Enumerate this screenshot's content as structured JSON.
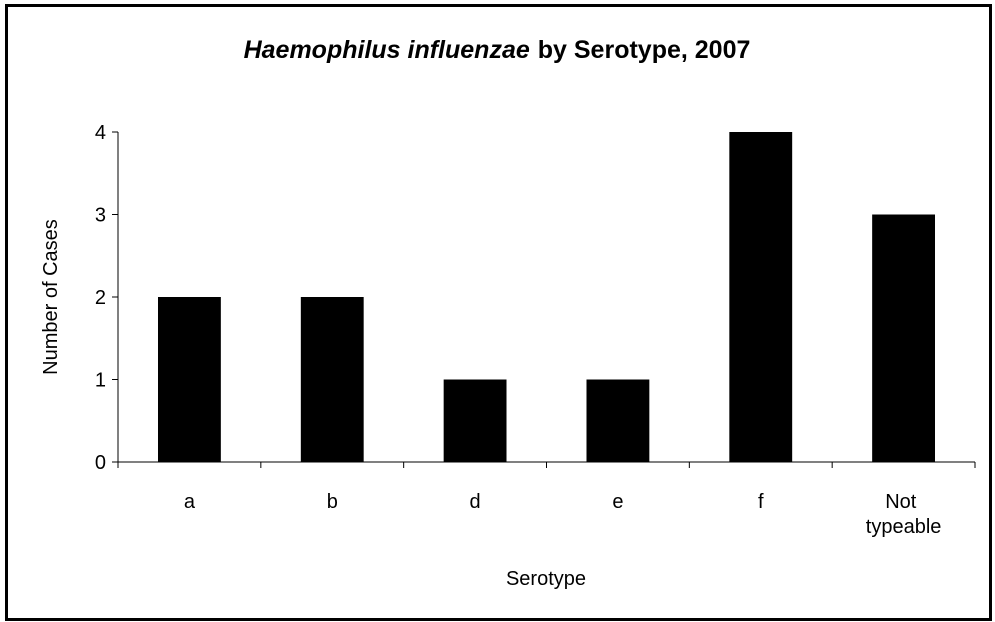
{
  "chart_data": {
    "type": "bar",
    "title": [
      "Haemophilus influenzae",
      "by Serotype, 2007"
    ],
    "x_label": "Serotype",
    "y_label": "Number of Cases",
    "categories": [
      "a",
      "b",
      "d",
      "e",
      "f",
      "Not typeable"
    ],
    "values": [
      2,
      2,
      1,
      1,
      4,
      3
    ],
    "color": "#000000",
    "ylim": [
      0,
      4
    ],
    "yticks": [
      0,
      1,
      2,
      3,
      4
    ],
    "grid": false
  }
}
